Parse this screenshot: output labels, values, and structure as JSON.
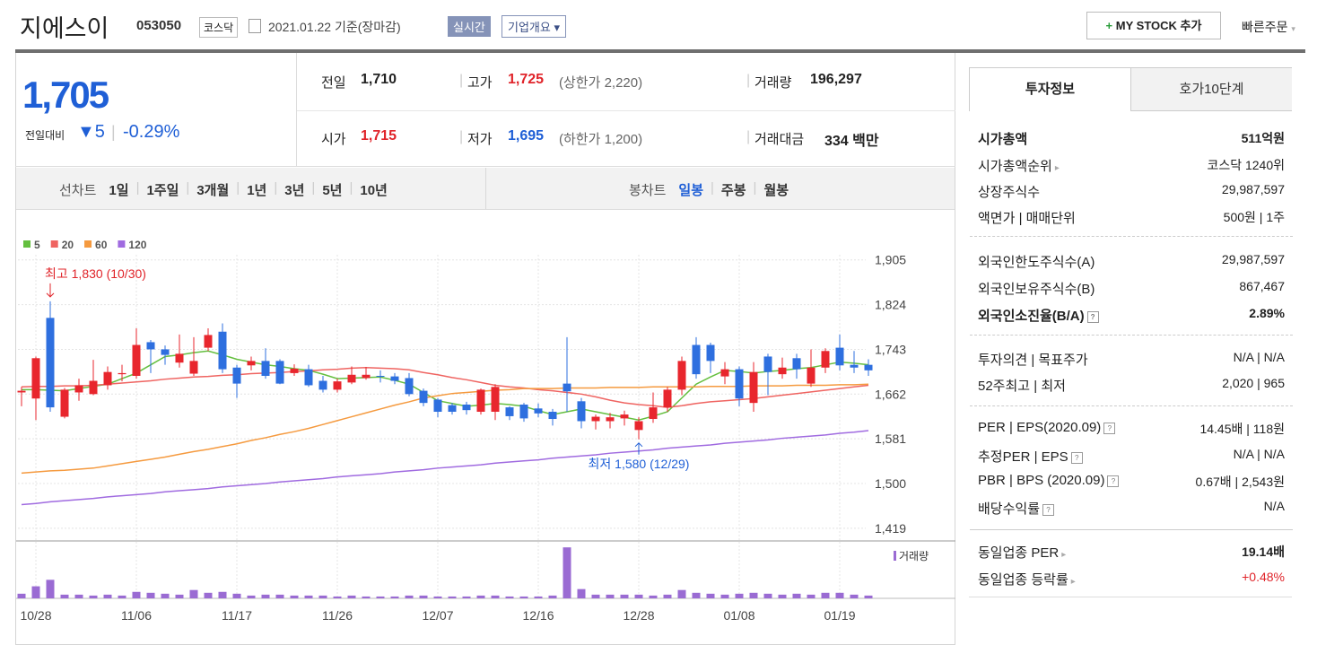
{
  "header": {
    "name": "지에스이",
    "code": "053050",
    "market": "코스닥",
    "date": "2021.01.22 기준(장마감)",
    "realtime": "실시간",
    "company_overview": "기업개요",
    "my_stock": "MY STOCK 추가",
    "quick_order": "빠른주문"
  },
  "price": {
    "current": "1,705",
    "change_label": "전일대비",
    "change": "5",
    "change_rate": "-0.29%"
  },
  "summary": {
    "prev_close": {
      "label": "전일",
      "value": "1,710"
    },
    "high": {
      "label": "고가",
      "value": "1,725",
      "limit": "(상한가 2,220)"
    },
    "volume": {
      "label": "거래량",
      "value": "196,297"
    },
    "open": {
      "label": "시가",
      "value": "1,715"
    },
    "low": {
      "label": "저가",
      "value": "1,695",
      "limit": "(하한가 1,200)"
    },
    "amount": {
      "label": "거래대금",
      "value": "334 백만"
    }
  },
  "toolbar": {
    "line_chart": "선차트",
    "line_periods": [
      "1일",
      "1주일",
      "3개월",
      "1년",
      "3년",
      "5년",
      "10년"
    ],
    "candle_chart": "봉차트",
    "candle_periods": [
      "일봉",
      "주봉",
      "월봉"
    ]
  },
  "chart_data": {
    "type": "candlestick",
    "categories": [
      null,
      "10/28",
      null,
      null,
      null,
      null,
      null,
      null,
      "11/06",
      null,
      null,
      null,
      null,
      null,
      null,
      "11/17",
      null,
      null,
      null,
      null,
      null,
      null,
      "11/26",
      null,
      null,
      null,
      null,
      null,
      null,
      "12/07",
      null,
      null,
      null,
      null,
      null,
      null,
      "12/16",
      null,
      null,
      null,
      null,
      null,
      null,
      "12/28",
      null,
      null,
      null,
      null,
      null,
      null,
      "01/08",
      null,
      null,
      null,
      null,
      null,
      null,
      "01/19",
      null,
      null
    ],
    "opens": [
      1665,
      1654,
      1800,
      1621,
      1665,
      1662,
      1678,
      1698,
      1695,
      1756,
      1743,
      1719,
      1699,
      1746,
      1775,
      1710,
      1714,
      1722,
      1722,
      1700,
      1707,
      1686,
      1670,
      1683,
      1691,
      1695,
      1694,
      1691,
      1668,
      1652,
      1642,
      1643,
      1630,
      1630,
      1638,
      1643,
      1636,
      1630,
      1681,
      1649,
      1613,
      1613,
      1618,
      1597,
      1617,
      1638,
      1670,
      1751,
      1751,
      1694,
      1707,
      1646,
      1730,
      1698,
      1727,
      1681,
      1710,
      1746,
      1715,
      1715
    ],
    "highs": [
      1675,
      1730,
      1830,
      1673,
      1690,
      1724,
      1712,
      1715,
      1781,
      1760,
      1750,
      1770,
      1765,
      1781,
      1790,
      1715,
      1730,
      1745,
      1725,
      1716,
      1715,
      1695,
      1690,
      1712,
      1711,
      1705,
      1700,
      1700,
      1672,
      1655,
      1646,
      1648,
      1672,
      1680,
      1640,
      1646,
      1645,
      1635,
      1765,
      1655,
      1625,
      1628,
      1632,
      1620,
      1665,
      1675,
      1730,
      1765,
      1755,
      1720,
      1712,
      1720,
      1735,
      1728,
      1735,
      1743,
      1745,
      1770,
      1740,
      1725
    ],
    "lows": [
      1640,
      1615,
      1630,
      1618,
      1650,
      1660,
      1670,
      1685,
      1690,
      1700,
      1715,
      1710,
      1695,
      1740,
      1700,
      1655,
      1705,
      1690,
      1680,
      1695,
      1675,
      1665,
      1665,
      1680,
      1688,
      1683,
      1680,
      1658,
      1640,
      1620,
      1625,
      1625,
      1625,
      1615,
      1615,
      1612,
      1620,
      1605,
      1630,
      1600,
      1598,
      1600,
      1605,
      1580,
      1610,
      1630,
      1660,
      1690,
      1700,
      1680,
      1640,
      1630,
      1660,
      1690,
      1690,
      1675,
      1700,
      1705,
      1700,
      1695
    ],
    "closes": [
      1668,
      1727,
      1638,
      1670,
      1678,
      1686,
      1702,
      1700,
      1751,
      1743,
      1733,
      1735,
      1722,
      1769,
      1707,
      1681,
      1722,
      1695,
      1681,
      1708,
      1678,
      1670,
      1685,
      1697,
      1697,
      1694,
      1686,
      1662,
      1646,
      1630,
      1630,
      1633,
      1670,
      1675,
      1622,
      1618,
      1627,
      1617,
      1667,
      1613,
      1621,
      1620,
      1625,
      1613,
      1638,
      1670,
      1722,
      1698,
      1722,
      1707,
      1654,
      1702,
      1702,
      1710,
      1707,
      1710,
      1740,
      1714,
      1710,
      1705
    ],
    "up_color": "#e8262d",
    "down_color": "#2e6fdf",
    "ylim": [
      1401,
      1937
    ],
    "yticks": [
      {
        "value": 1419,
        "label": "1,419"
      },
      {
        "value": 1500,
        "label": "1,500"
      },
      {
        "value": 1581,
        "label": "1,581"
      },
      {
        "value": 1662,
        "label": "1,662"
      },
      {
        "value": 1743,
        "label": "1,743"
      },
      {
        "value": 1824,
        "label": "1,824"
      },
      {
        "value": 1905,
        "label": "1,905"
      }
    ],
    "grid": true,
    "series": [
      {
        "name": "5",
        "color": "#64bf3f",
        "values": [
          1670,
          1670,
          1669,
          1668,
          1672,
          1676,
          1680,
          1690,
          1700,
          1715,
          1730,
          1733,
          1737,
          1740,
          1733,
          1725,
          1720,
          1715,
          1712,
          1708,
          1705,
          1698,
          1690,
          1691,
          1692,
          1693,
          1687,
          1680,
          1665,
          1650,
          1645,
          1640,
          1642,
          1645,
          1643,
          1640,
          1632,
          1625,
          1630,
          1635,
          1630,
          1625,
          1620,
          1615,
          1622,
          1630,
          1655,
          1680,
          1693,
          1705,
          1703,
          1700,
          1703,
          1705,
          1708,
          1710,
          1715,
          1720,
          1718,
          1715
        ]
      },
      {
        "name": "20",
        "color": "#ef6461",
        "values": [
          1675,
          1676,
          1676,
          1677,
          1677,
          1678,
          1680,
          1682,
          1684,
          1686,
          1689,
          1691,
          1693,
          1694,
          1696,
          1697,
          1699,
          1700,
          1701,
          1703,
          1704,
          1706,
          1707,
          1709,
          1710,
          1709,
          1708,
          1706,
          1701,
          1697,
          1692,
          1688,
          1683,
          1678,
          1675,
          1673,
          1670,
          1668,
          1665,
          1662,
          1657,
          1651,
          1646,
          1643,
          1641,
          1638,
          1641,
          1645,
          1648,
          1650,
          1652,
          1654,
          1657,
          1660,
          1663,
          1666,
          1669,
          1672,
          1675,
          1678
        ]
      },
      {
        "name": "60",
        "color": "#f59a3f",
        "values": [
          1519,
          1521,
          1523,
          1524,
          1526,
          1528,
          1532,
          1536,
          1540,
          1544,
          1548,
          1553,
          1558,
          1562,
          1567,
          1572,
          1578,
          1583,
          1589,
          1594,
          1600,
          1607,
          1614,
          1621,
          1628,
          1635,
          1642,
          1648,
          1655,
          1659,
          1663,
          1665,
          1667,
          1669,
          1670,
          1672,
          1672,
          1672,
          1673,
          1673,
          1673,
          1674,
          1674,
          1674,
          1675,
          1675,
          1675,
          1675,
          1676,
          1676,
          1676,
          1677,
          1677,
          1677,
          1678,
          1678,
          1678,
          1679,
          1679,
          1680
        ]
      },
      {
        "name": "120",
        "color": "#a06be0",
        "values": [
          1462,
          1464,
          1467,
          1469,
          1471,
          1473,
          1476,
          1478,
          1480,
          1482,
          1485,
          1487,
          1489,
          1491,
          1494,
          1496,
          1498,
          1500,
          1503,
          1505,
          1507,
          1509,
          1512,
          1514,
          1516,
          1518,
          1521,
          1523,
          1525,
          1528,
          1530,
          1532,
          1534,
          1537,
          1539,
          1541,
          1543,
          1546,
          1548,
          1550,
          1552,
          1555,
          1557,
          1559,
          1561,
          1564,
          1566,
          1568,
          1570,
          1573,
          1575,
          1577,
          1579,
          1582,
          1584,
          1586,
          1588,
          1591,
          1593,
          1596
        ]
      }
    ],
    "volume": {
      "name": "거래량",
      "color": "#9a6bd3",
      "ylim": [
        0,
        60
      ],
      "values": [
        5,
        13,
        20,
        4,
        4,
        3,
        4,
        3,
        7,
        6,
        5,
        4,
        9,
        6,
        7,
        5,
        3,
        4,
        4,
        3,
        3,
        3,
        2,
        3,
        2,
        2,
        2,
        3,
        3,
        2,
        2,
        2,
        3,
        3,
        2,
        2,
        2,
        3,
        55,
        10,
        4,
        4,
        4,
        4,
        3,
        4,
        9,
        6,
        5,
        4,
        5,
        6,
        5,
        4,
        5,
        4,
        6,
        6,
        4,
        3
      ]
    },
    "annotations": {
      "high": "최고 1,830 (10/30)",
      "low": "최저 1,580 (12/29)"
    }
  },
  "invest": {
    "tabs": [
      "투자정보",
      "호가10단계"
    ],
    "market_cap": {
      "label": "시가총액",
      "value": "511억원"
    },
    "market_cap_rank": {
      "label": "시가총액순위",
      "value": "코스닥 1240위"
    },
    "listed_shares": {
      "label": "상장주식수",
      "value": "29,987,597"
    },
    "par_value": {
      "label": "액면가 | 매매단위",
      "value": "500원 | 1주"
    },
    "foreign_limit": {
      "label": "외국인한도주식수(A)",
      "value": "29,987,597"
    },
    "foreign_holding": {
      "label": "외국인보유주식수(B)",
      "value": "867,467"
    },
    "foreign_ratio": {
      "label": "외국인소진율(B/A)",
      "value": "2.89%"
    },
    "opinion": {
      "label": "투자의견 | 목표주가",
      "value": "N/A | N/A"
    },
    "week52": {
      "label": "52주최고 | 최저",
      "value": "2,020 | 965"
    },
    "per": {
      "label": "PER | EPS(2020.09)",
      "value": "14.45배 | 118원"
    },
    "est_per": {
      "label": "추정PER | EPS",
      "value": "N/A | N/A"
    },
    "pbr": {
      "label": "PBR | BPS (2020.09)",
      "value": "0.67배 | 2,543원"
    },
    "dividend": {
      "label": "배당수익률",
      "value": "N/A"
    },
    "sector_per": {
      "label": "동일업종 PER",
      "value": "19.14배"
    },
    "sector_change": {
      "label": "동일업종 등락률",
      "value": "+0.48%"
    }
  }
}
